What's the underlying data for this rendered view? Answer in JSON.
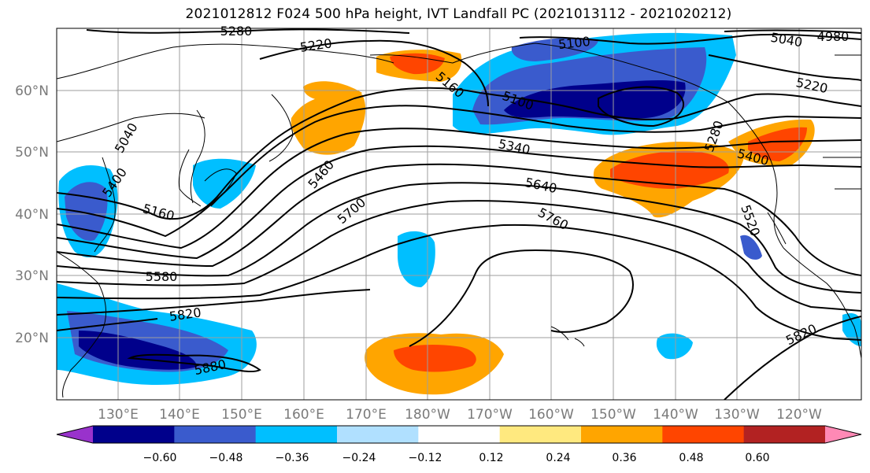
{
  "title": "2021012812 F024 500 hPa height, IVT Landfall PC (2021013112 - 2021020212)",
  "map": {
    "lat_labels": [
      "60°N",
      "50°N",
      "40°N",
      "30°N",
      "20°N"
    ],
    "lon_labels": [
      "130°E",
      "140°E",
      "150°E",
      "160°E",
      "170°E",
      "180°W",
      "170°W",
      "160°W",
      "150°W",
      "140°W",
      "130°W",
      "120°W"
    ],
    "contour_labels": [
      "5280",
      "5220",
      "5100",
      "5040",
      "4980",
      "5220",
      "5160",
      "5100",
      "5040",
      "5400",
      "5160",
      "5340",
      "5280",
      "5460",
      "5400",
      "5640",
      "5700",
      "5760",
      "5520",
      "5580",
      "5820",
      "5880",
      "5820"
    ],
    "colors": {
      "contour": "#000000",
      "coast": "#000000",
      "grid": "#9e9e9e"
    }
  },
  "colorbar": {
    "ticks": [
      "−0.60",
      "−0.48",
      "−0.36",
      "−0.24",
      "−0.12",
      "0.12",
      "0.24",
      "0.36",
      "0.48",
      "0.60"
    ],
    "colors": [
      "#9932cc",
      "#00008b",
      "#3a5bcd",
      "#00bfff",
      "#b0e0ff",
      "#ffffff",
      "#ffe97f",
      "#ffa500",
      "#ff4500",
      "#b22222",
      "#ff89b5"
    ]
  }
}
